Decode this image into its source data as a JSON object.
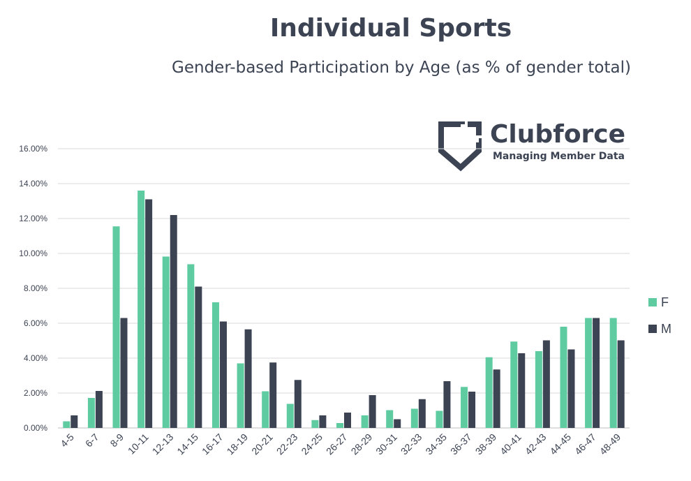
{
  "chart_data": {
    "type": "bar",
    "title": "Individual Sports",
    "subtitle": "Gender-based Participation by Age (as % of gender total)",
    "categories": [
      "4-5",
      "6-7",
      "8-9",
      "10-11",
      "12-13",
      "14-15",
      "16-17",
      "18-19",
      "20-21",
      "22-23",
      "24-25",
      "26-27",
      "28-29",
      "30-31",
      "32-33",
      "34-35",
      "36-37",
      "38-39",
      "40-41",
      "42-43",
      "44-45",
      "46-47",
      "48-49"
    ],
    "series": [
      {
        "name": "F",
        "color": "#5ecba1",
        "values": [
          0.38,
          1.72,
          11.55,
          13.6,
          9.82,
          9.38,
          7.2,
          3.7,
          2.1,
          1.38,
          0.45,
          0.28,
          0.72,
          1.02,
          1.1,
          0.98,
          2.35,
          4.05,
          4.95,
          4.4,
          5.8,
          6.3,
          6.3
        ]
      },
      {
        "name": "M",
        "color": "#3c4353",
        "values": [
          0.72,
          2.12,
          6.3,
          13.1,
          12.2,
          8.1,
          6.1,
          5.65,
          3.75,
          2.75,
          0.72,
          0.88,
          1.88,
          0.5,
          1.65,
          2.68,
          2.08,
          3.35,
          4.28,
          5.02,
          4.5,
          6.3,
          5.02
        ]
      }
    ],
    "ylim": [
      0,
      16
    ],
    "yticks": [
      "0.00%",
      "2.00%",
      "4.00%",
      "6.00%",
      "8.00%",
      "10.00%",
      "12.00%",
      "14.00%",
      "16.00%"
    ],
    "grid": true,
    "legend": "right"
  },
  "logo": {
    "word": "Clubforce",
    "tagline": "Managing Member Data",
    "color": "#3c4353"
  }
}
